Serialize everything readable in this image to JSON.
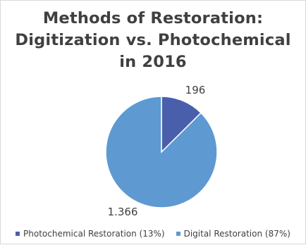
{
  "chart_data": {
    "type": "pie",
    "title_lines": [
      "Methods of Restoration:",
      "Digitization vs. Photochemical",
      "in 2016"
    ],
    "slices": [
      {
        "label": "Photochemical Restoration (13%)",
        "value": 196,
        "value_label": "196",
        "color": "#4a5fab"
      },
      {
        "label": "Digital Restoration (87%)",
        "value": 1366,
        "value_label": "1.366",
        "color": "#5e99d2"
      }
    ],
    "legend_position": "bottom"
  }
}
